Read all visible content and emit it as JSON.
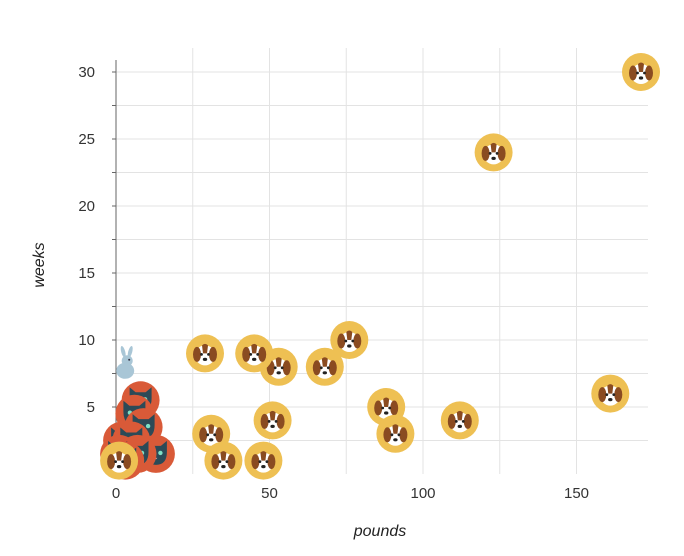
{
  "chart_data": {
    "type": "scatter",
    "title": "",
    "xlabel": "pounds",
    "ylabel": "weeks",
    "xlim": [
      -5,
      175
    ],
    "ylim": [
      0,
      31
    ],
    "xticks": [
      0,
      50,
      100,
      150
    ],
    "yticks": [
      5,
      10,
      15,
      20,
      25,
      30
    ],
    "grid": true,
    "legend": "none",
    "colors": {
      "dog_ring": "#eec053",
      "dog_face": "#ffffff",
      "dog_ear": "#8a4b21",
      "cat_ring": "#d95a38",
      "cat_face": "#2c4a57",
      "rabbit": "#a9c6d6",
      "grid": "#e3e3e3",
      "axis": "#666666"
    },
    "series": [
      {
        "icon": "dog-icon",
        "points": [
          [
            171,
            30
          ],
          [
            123,
            24
          ],
          [
            161,
            6
          ],
          [
            76,
            10
          ],
          [
            68,
            8
          ],
          [
            53,
            8
          ],
          [
            45,
            9
          ],
          [
            29,
            9
          ],
          [
            88,
            5
          ],
          [
            112,
            4
          ],
          [
            51,
            4
          ],
          [
            91,
            3
          ],
          [
            31,
            3
          ],
          [
            35,
            1
          ],
          [
            48,
            1
          ],
          [
            1,
            1
          ]
        ]
      },
      {
        "icon": "cat-icon",
        "points": [
          [
            8,
            5.5
          ],
          [
            6,
            4.5
          ],
          [
            9,
            3.5
          ],
          [
            2,
            2.5
          ],
          [
            5,
            2.5
          ],
          [
            13,
            1.5
          ],
          [
            1,
            1.5
          ],
          [
            7,
            1.5
          ],
          [
            3,
            1
          ]
        ]
      },
      {
        "icon": "rabbit-icon",
        "points": [
          [
            3,
            8
          ]
        ]
      }
    ]
  }
}
